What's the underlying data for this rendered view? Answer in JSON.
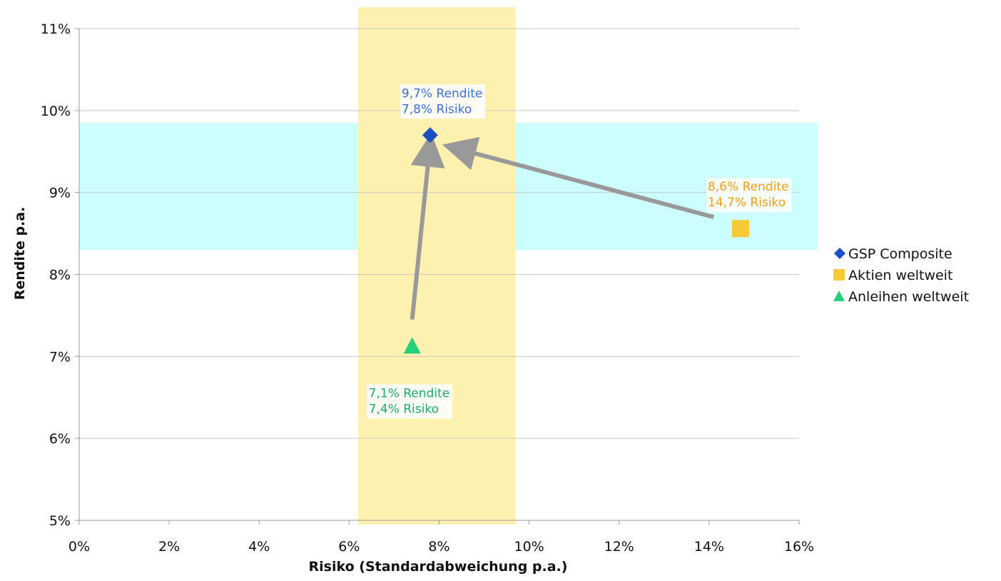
{
  "chart_data": {
    "type": "scatter",
    "xlabel": "Risiko (Standardabweichung p.a.)",
    "ylabel": "Rendite p.a.",
    "xlim": [
      0,
      16
    ],
    "ylim": [
      5,
      11
    ],
    "x_ticks": [
      "0%",
      "2%",
      "4%",
      "6%",
      "8%",
      "10%",
      "12%",
      "14%",
      "16%"
    ],
    "y_ticks": [
      "5%",
      "6%",
      "7%",
      "8%",
      "9%",
      "10%",
      "11%"
    ],
    "grid": "horizontal",
    "legend_position": "right",
    "bands": {
      "vertical": {
        "x_range": [
          6.2,
          9.7
        ],
        "color": "#fdf1b0"
      },
      "horizontal": {
        "y_range": [
          8.3,
          9.85
        ],
        "color": "#ccfeff"
      }
    },
    "series": [
      {
        "name": "GSP Composite",
        "x": 7.8,
        "y": 9.7,
        "marker": "diamond",
        "color": "#1a4fc4",
        "label_lines": [
          "9,7% Rendite",
          "7,8% Risiko"
        ],
        "label_color": "#3a6fd6",
        "label_anchor": "above"
      },
      {
        "name": "Aktien weltweit",
        "x": 14.7,
        "y": 8.56,
        "marker": "square",
        "color": "#f8ca36",
        "label_lines": [
          "8,6% Rendite",
          "14,7% Risiko"
        ],
        "label_color": "#f39c12",
        "label_anchor": "above"
      },
      {
        "name": "Anleihen weltweit",
        "x": 7.4,
        "y": 7.13,
        "marker": "triangle",
        "color": "#25d07a",
        "label_lines": [
          "7,1% Rendite",
          "7,4% Risiko"
        ],
        "label_color": "#1aaa6e",
        "label_anchor": "below"
      }
    ],
    "arrows": [
      {
        "from": [
          7.4,
          7.45
        ],
        "to": [
          7.8,
          9.6
        ],
        "color": "#999999"
      },
      {
        "from": [
          14.1,
          8.7
        ],
        "to": [
          8.3,
          9.55
        ],
        "color": "#999999"
      }
    ]
  }
}
